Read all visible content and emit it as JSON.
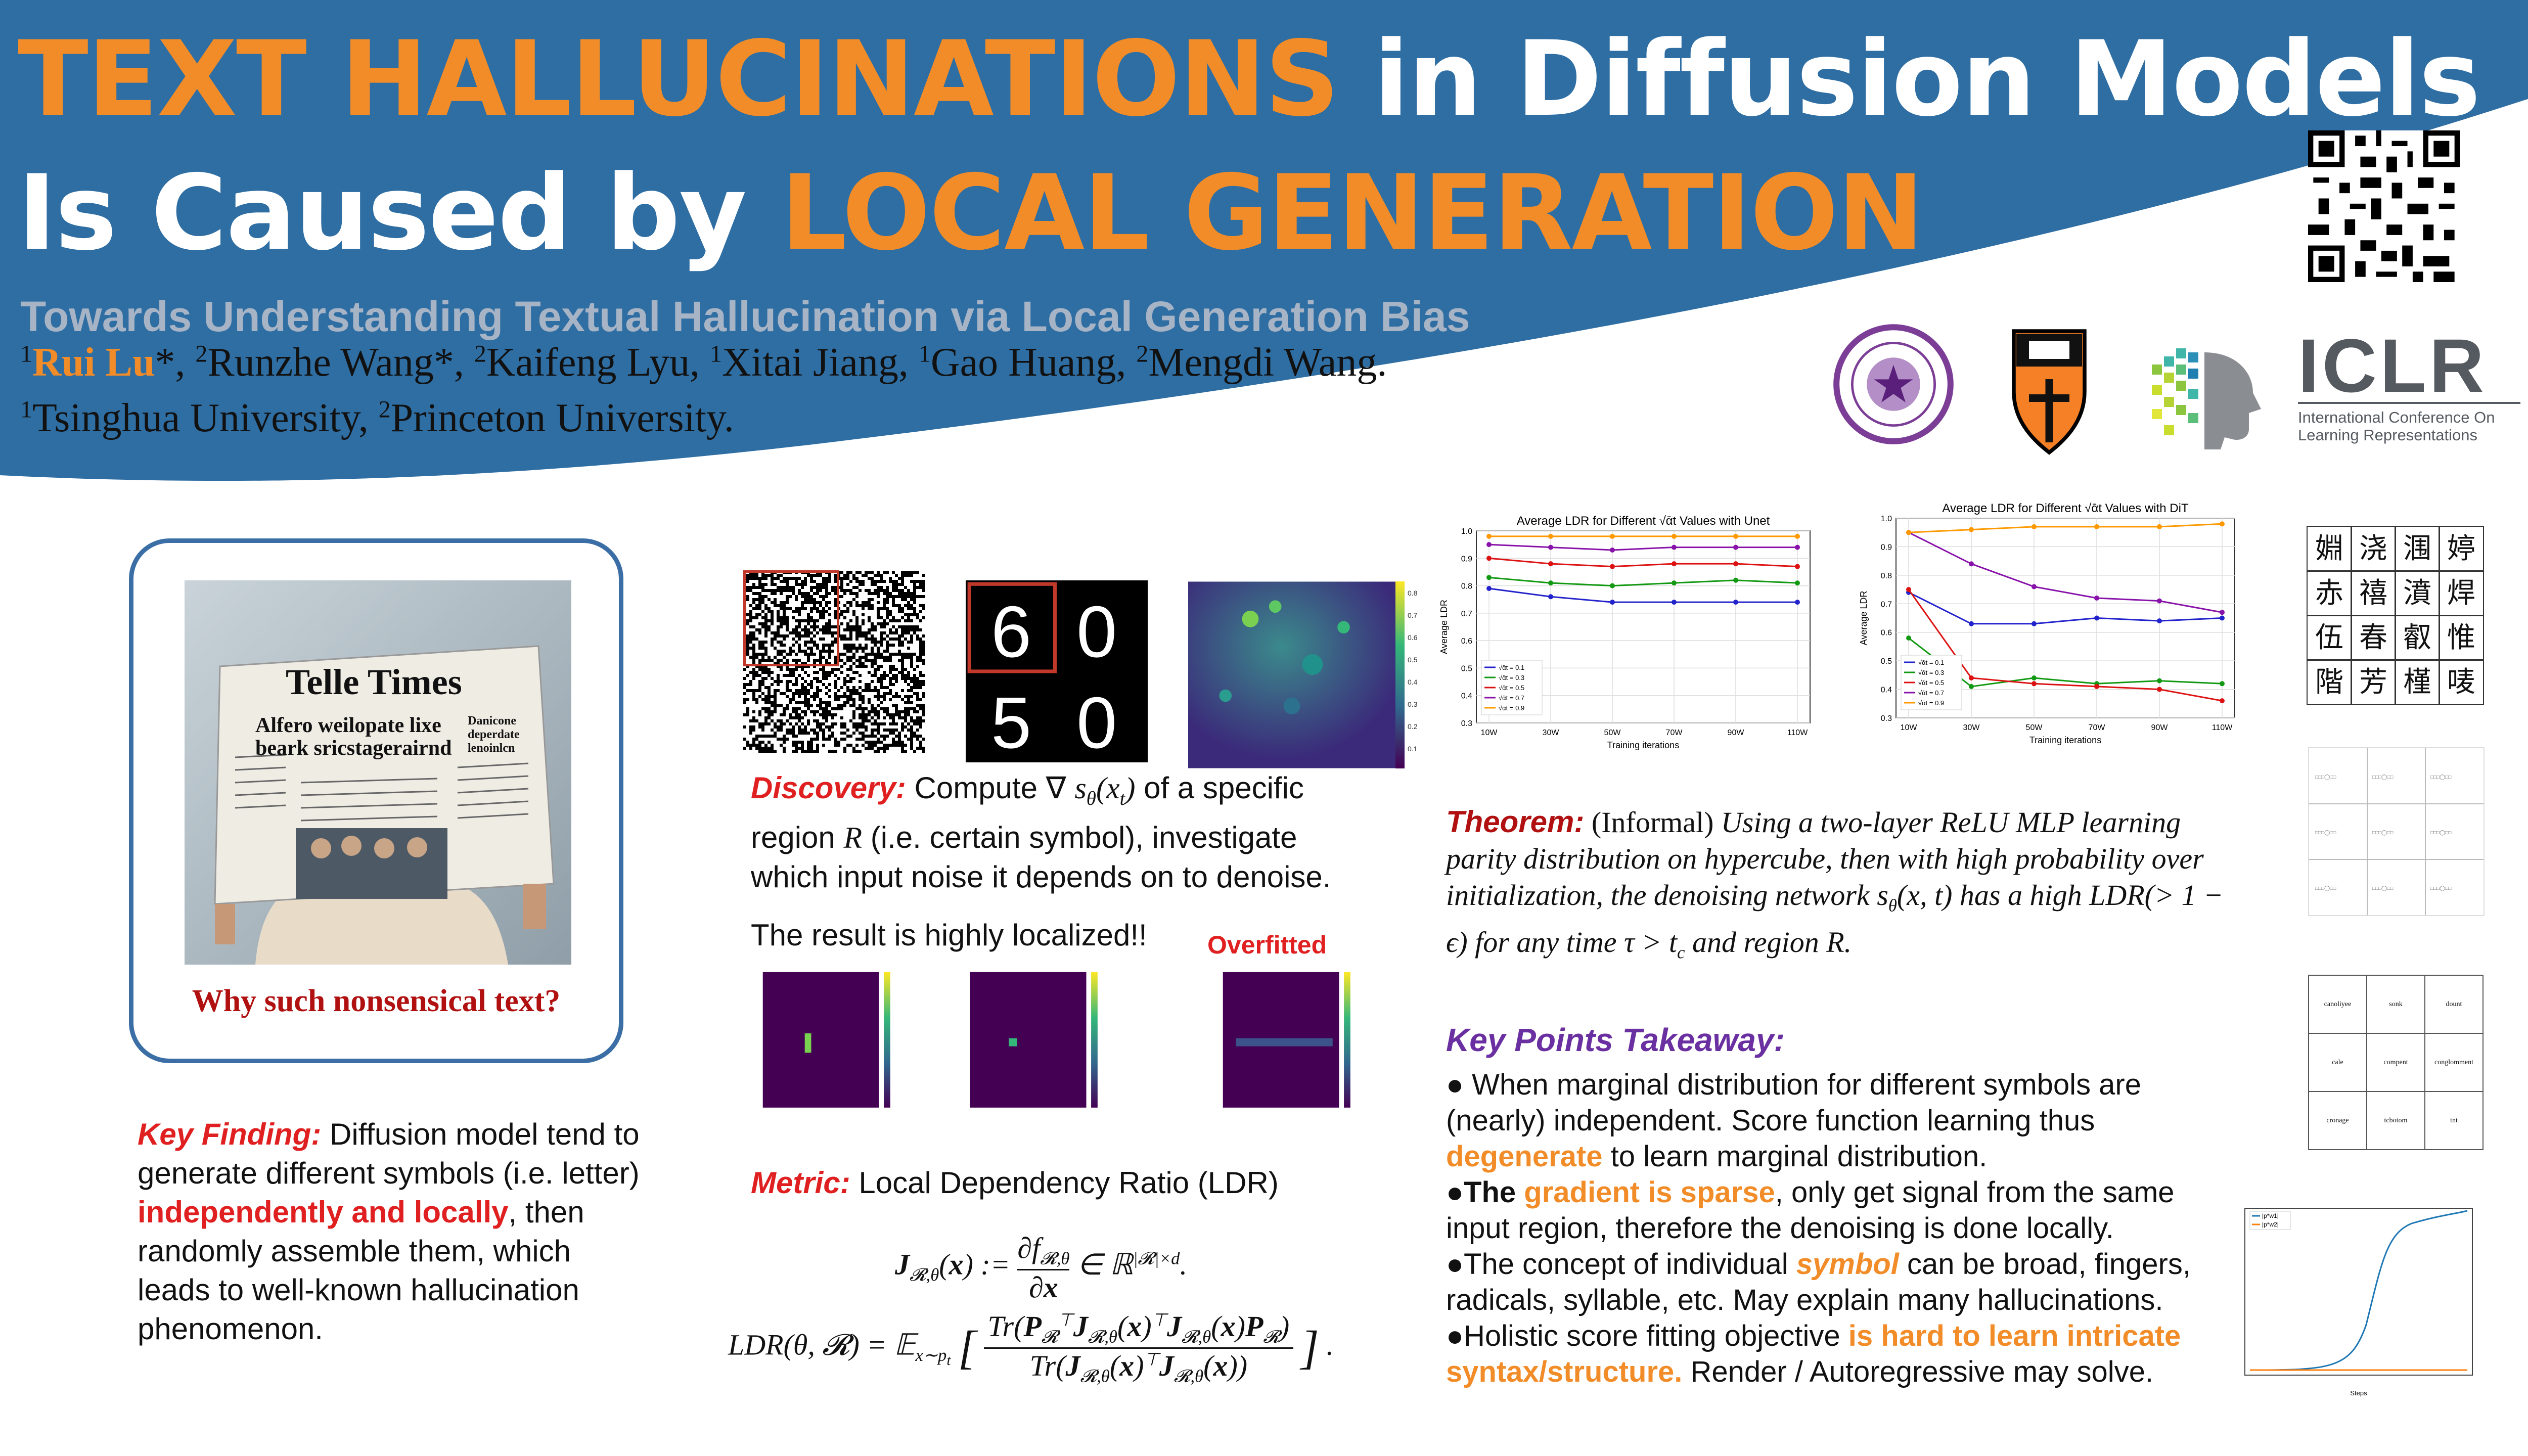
{
  "header": {
    "title_line1_highlight": "TEXT HALLUCINATIONS",
    "title_line1_rest": " in Diffusion Models",
    "title_line2_start": "Is Caused by ",
    "title_line2_highlight": "LOCAL GENERATION",
    "subtitle": "Towards Understanding Textual Hallucination via Local Generation Bias",
    "authors": [
      {
        "sup": "1",
        "name": "Rui Lu",
        "suffix": "*, ",
        "highlight": true
      },
      {
        "sup": "2",
        "name": "Runzhe Wang",
        "suffix": "*, ",
        "highlight": false
      },
      {
        "sup": "2",
        "name": "Kaifeng Lyu",
        "suffix": ", ",
        "highlight": false
      },
      {
        "sup": "1",
        "name": "Xitai Jiang",
        "suffix": ", ",
        "highlight": false
      },
      {
        "sup": "1",
        "name": "Gao Huang",
        "suffix": ", ",
        "highlight": false
      },
      {
        "sup": "2",
        "name": "Mengdi Wang",
        "suffix": ".",
        "highlight": false
      }
    ],
    "affiliations": [
      {
        "sup": "1",
        "name": "Tsinghua University, "
      },
      {
        "sup": "2",
        "name": "Princeton University."
      }
    ],
    "iclr_logo": "ICLR",
    "iclr_sub1": "International Conference On",
    "iclr_sub2": "Learning Representations",
    "colors": {
      "band": "#2f6ea3",
      "accent": "#f28c28",
      "purple": "#6a2fa0"
    }
  },
  "left": {
    "newspaper_masthead": "Telle Times",
    "newspaper_headline1": "Alfero weilopate lixe",
    "newspaper_headline2": "beark sricstagerairnd",
    "newspaper_side1": "Danicone",
    "newspaper_side2": "deperdate",
    "newspaper_side3": "lenoinlcn",
    "caption": "Why such nonsensical text?",
    "key_finding_label": "Key Finding:",
    "key_finding_1": " Diffusion model tend to generate different symbols (i.e. letter) ",
    "key_finding_hl": "independently and locally",
    "key_finding_2": ", then randomly assemble them, which leads to well-known hallucination phenomenon."
  },
  "middle": {
    "digits": [
      "6",
      "0",
      "5",
      "0"
    ],
    "heatmap_colorbar_ticks": [
      "0.8",
      "0.7",
      "0.6",
      "0.5",
      "0.4",
      "0.3",
      "0.2",
      "0.1"
    ],
    "discovery_label": "Discovery:",
    "discovery_text_1": " Compute ∇ ",
    "discovery_math_1": "s",
    "discovery_math_sub": "θ",
    "discovery_math_2": "(x",
    "discovery_math_3": "t",
    "discovery_math_4": ")",
    "discovery_text_2": " of a specific region ",
    "discovery_region": "R",
    "discovery_text_3": " (i.e. certain symbol), investigate which input noise it depends on to denoise.",
    "result": "The result is highly localized!!",
    "overfitted": "Overfitted",
    "metric_label": "Metric:",
    "metric_text": " Local Dependency Ratio (LDR)",
    "eq1": "J_{R,θ}(x) := ∂f_{R,θ}/∂x ∈ ℝ^{|R|×d}.",
    "eq2": "LDR(θ, R) = E_{x∼p_t}[ Tr(P_R^⊤ J_{R,θ}(x)^⊤ J_{R,θ}(x) P_R) / Tr(J_{R,θ}(x)^⊤ J_{R,θ}(x)) ]."
  },
  "right": {
    "theorem_label": "Theorem:",
    "theorem_informal": " (Informal) ",
    "theorem_text": "Using a two-layer ReLU MLP learning parity distribution on hypercube, then with high probability over initialization, the denoising network s",
    "theorem_text_2": "(x, t) has a high LDR(> 1 − ϵ) for any time τ > t",
    "theorem_text_3": " and region R.",
    "theorem_sub_theta": "θ",
    "theorem_sub_c": "c",
    "takeaway_title": "Key Points Takeaway:",
    "bullets": [
      {
        "pre": "● When marginal distribution for different symbols are (nearly) independent. Score function learning thus ",
        "hl": "degenerate",
        "post": " to learn marginal distribution."
      },
      {
        "pre": "●",
        "bold": "The ",
        "hl": "gradient is sparse",
        "post": ", only get signal from the same input region, therefore the denoising is done locally."
      },
      {
        "pre": "●The concept of individual ",
        "hl": "symbol",
        "post": " can be broad, fingers, radicals, syllable, etc. May explain many hallucinations."
      },
      {
        "pre": "●Holistic score fitting objective ",
        "hl": "is hard to learn intricate syntax/structure.",
        "post": " Render / Autoregressive may solve."
      }
    ],
    "chinese_chars": [
      "婣",
      "浇",
      "涠",
      "婷",
      "赤",
      "禧",
      "濆",
      "焊",
      "伍",
      "春",
      "叡",
      "惟",
      "階",
      "芳",
      "槿",
      "唛"
    ],
    "words": [
      "canoliyee",
      "sonk",
      "dount",
      "cale",
      "compent",
      "conglomment",
      "cronage",
      "tcbotom",
      "tnt"
    ],
    "small_chart_legend": [
      "|p*w1|",
      "|p*w2|"
    ],
    "small_chart_xlabel": "Steps"
  },
  "chart_data": [
    {
      "type": "line",
      "title": "Average LDR for Different √ᾱt Values with Unet",
      "xlabel": "Training iterations",
      "ylabel": "Average LDR",
      "categories": [
        "10W",
        "30W",
        "50W",
        "70W",
        "90W",
        "110W"
      ],
      "ylim": [
        0.3,
        1.0
      ],
      "yticks": [
        "1.0",
        "0.9",
        "0.8",
        "0.7",
        "0.6",
        "0.5",
        "0.4",
        "0.3"
      ],
      "legend": "bottom-left",
      "grid": true,
      "series": [
        {
          "name": "√ᾱt = 0.1",
          "color": "#2222cc",
          "values": [
            0.79,
            0.76,
            0.74,
            0.74,
            0.74,
            0.74
          ]
        },
        {
          "name": "√ᾱt = 0.3",
          "color": "#119911",
          "values": [
            0.83,
            0.81,
            0.8,
            0.81,
            0.82,
            0.81
          ]
        },
        {
          "name": "√ᾱt = 0.5",
          "color": "#dd1111",
          "values": [
            0.9,
            0.88,
            0.87,
            0.88,
            0.88,
            0.87
          ]
        },
        {
          "name": "√ᾱt = 0.7",
          "color": "#8811aa",
          "values": [
            0.95,
            0.94,
            0.93,
            0.94,
            0.94,
            0.94
          ]
        },
        {
          "name": "√ᾱt = 0.9",
          "color": "#ff9900",
          "values": [
            0.98,
            0.98,
            0.98,
            0.98,
            0.98,
            0.98
          ]
        }
      ]
    },
    {
      "type": "line",
      "title": "Average LDR for Different √ᾱt Values with DiT",
      "xlabel": "Training iterations",
      "ylabel": "Average LDR",
      "categories": [
        "10W",
        "30W",
        "50W",
        "70W",
        "90W",
        "110W"
      ],
      "ylim": [
        0.3,
        1.0
      ],
      "yticks": [
        "1.0",
        "0.9",
        "0.8",
        "0.7",
        "0.6",
        "0.5",
        "0.4",
        "0.3"
      ],
      "legend": "bottom-left",
      "grid": true,
      "series": [
        {
          "name": "√ᾱt = 0.1",
          "color": "#2222cc",
          "values": [
            0.74,
            0.63,
            0.63,
            0.65,
            0.64,
            0.65
          ]
        },
        {
          "name": "√ᾱt = 0.3",
          "color": "#119911",
          "values": [
            0.58,
            0.41,
            0.44,
            0.42,
            0.43,
            0.42
          ]
        },
        {
          "name": "√ᾱt = 0.5",
          "color": "#dd1111",
          "values": [
            0.75,
            0.44,
            0.42,
            0.41,
            0.4,
            0.36
          ]
        },
        {
          "name": "√ᾱt = 0.7",
          "color": "#8811aa",
          "values": [
            0.95,
            0.84,
            0.76,
            0.72,
            0.71,
            0.67
          ]
        },
        {
          "name": "√ᾱt = 0.9",
          "color": "#ff9900",
          "values": [
            0.95,
            0.96,
            0.97,
            0.97,
            0.97,
            0.98
          ]
        }
      ]
    }
  ]
}
